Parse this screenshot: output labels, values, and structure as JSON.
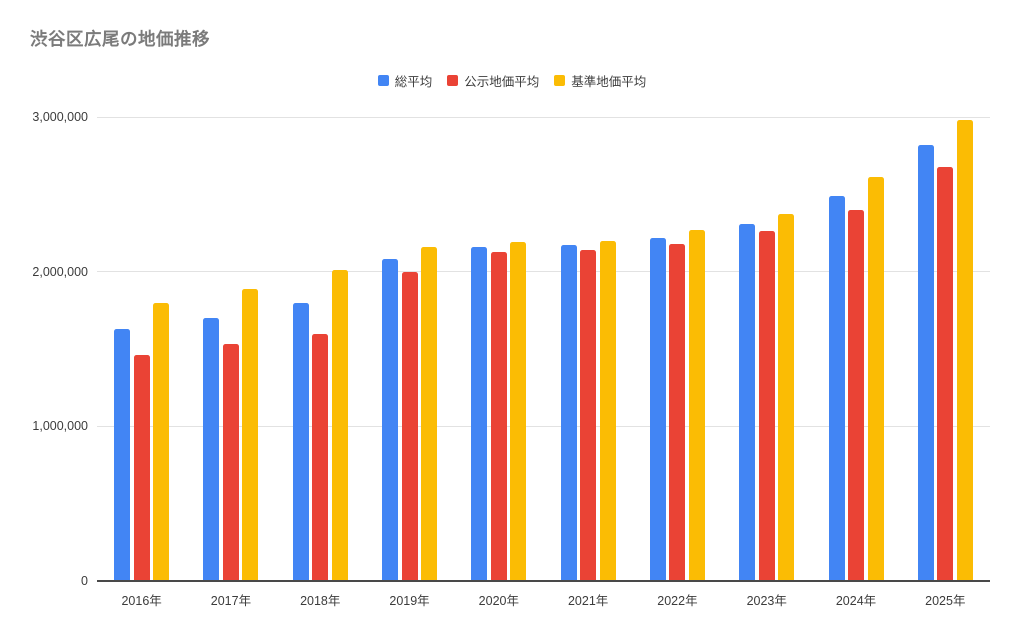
{
  "colors": {
    "background": "#ffffff",
    "title": "#7b7b7b",
    "axis_text": "#3c3c3c",
    "gridline": "#e2e2e2",
    "baseline": "#494949"
  },
  "chart_data": {
    "type": "bar",
    "title": "渋谷区広尾の地価推移",
    "xlabel": "",
    "ylabel": "",
    "legend_position": "top",
    "grid": true,
    "ylim": [
      0,
      3000000
    ],
    "yticks": [
      {
        "value": 0,
        "label": "0"
      },
      {
        "value": 1000000,
        "label": "1,000,000"
      },
      {
        "value": 2000000,
        "label": "2,000,000"
      },
      {
        "value": 3000000,
        "label": "3,000,000"
      }
    ],
    "categories": [
      "2016年",
      "2017年",
      "2018年",
      "2019年",
      "2020年",
      "2021年",
      "2022年",
      "2023年",
      "2024年",
      "2025年"
    ],
    "series": [
      {
        "name": "総平均",
        "color": "#4285F4",
        "values": [
          1630000,
          1700000,
          1800000,
          2080000,
          2160000,
          2170000,
          2220000,
          2310000,
          2490000,
          2820000
        ]
      },
      {
        "name": "公示地価平均",
        "color": "#EA4335",
        "values": [
          1460000,
          1530000,
          1600000,
          2000000,
          2130000,
          2140000,
          2180000,
          2260000,
          2400000,
          2680000
        ]
      },
      {
        "name": "基準地価平均",
        "color": "#FBBC04",
        "values": [
          1800000,
          1890000,
          2010000,
          2160000,
          2190000,
          2200000,
          2270000,
          2370000,
          2610000,
          2980000
        ]
      }
    ]
  }
}
